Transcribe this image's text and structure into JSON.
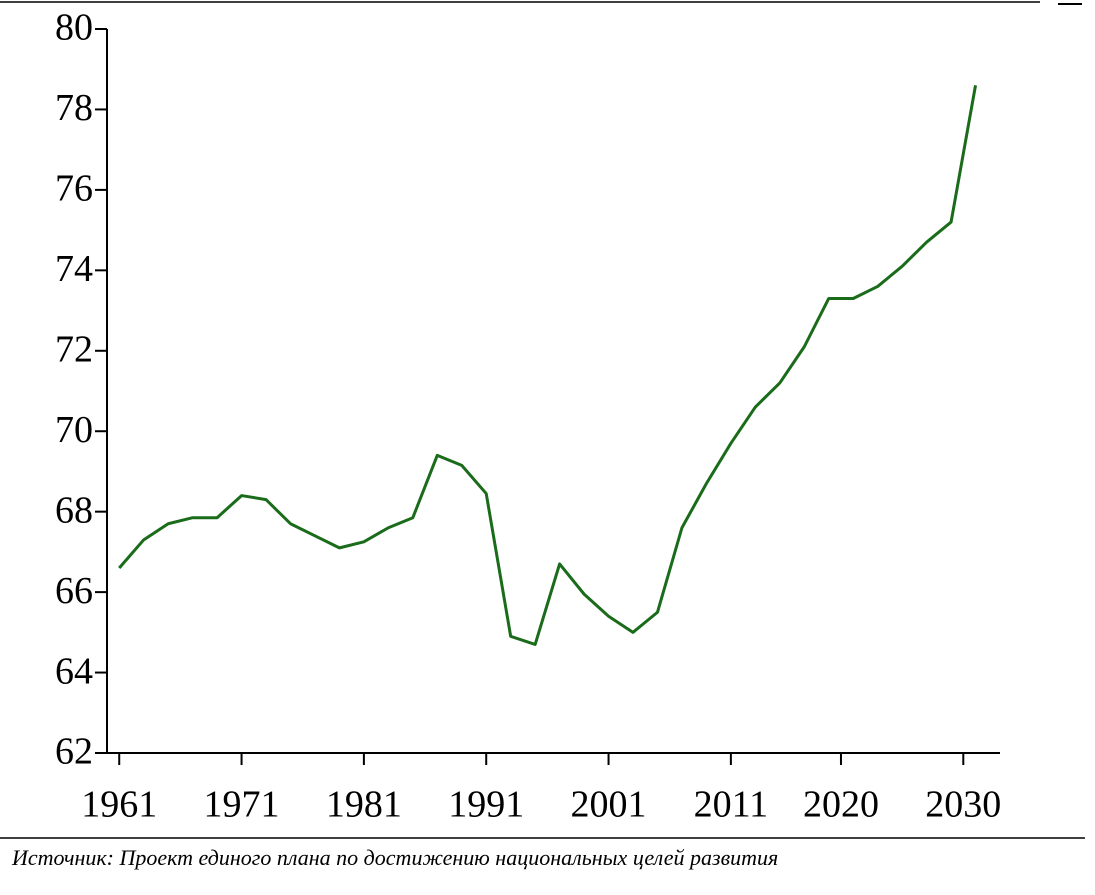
{
  "chart_data": {
    "type": "line",
    "x": [
      1961,
      1963,
      1965,
      1967,
      1969,
      1971,
      1973,
      1975,
      1977,
      1979,
      1981,
      1983,
      1985,
      1987,
      1989,
      1991,
      1993,
      1995,
      1997,
      1999,
      2001,
      2003,
      2005,
      2007,
      2009,
      2011,
      2013,
      2015,
      2017,
      2019,
      2021,
      2023,
      2025,
      2027,
      2029,
      2031
    ],
    "series": [
      {
        "color": "#1a6b1a",
        "values": [
          66.6,
          67.3,
          67.7,
          67.85,
          67.85,
          68.4,
          68.3,
          67.7,
          67.4,
          67.1,
          67.25,
          67.6,
          67.85,
          69.4,
          69.15,
          68.45,
          64.9,
          64.7,
          66.7,
          65.95,
          65.4,
          65.0,
          65.5,
          67.6,
          68.7,
          69.7,
          70.6,
          71.2,
          72.1,
          73.3,
          73.3,
          73.6,
          74.1,
          74.7,
          75.2,
          78.6
        ]
      }
    ],
    "xlim": [
      1960,
      2033
    ],
    "xticks": [
      1961,
      1971,
      1981,
      1991,
      2001,
      2011,
      2020,
      2030
    ],
    "ylim": [
      62,
      80
    ],
    "yticks": [
      62,
      64,
      66,
      68,
      70,
      72,
      74,
      76,
      78,
      80
    ],
    "source": "Источник: Проект единого плана по достижению национальных целей развития"
  }
}
